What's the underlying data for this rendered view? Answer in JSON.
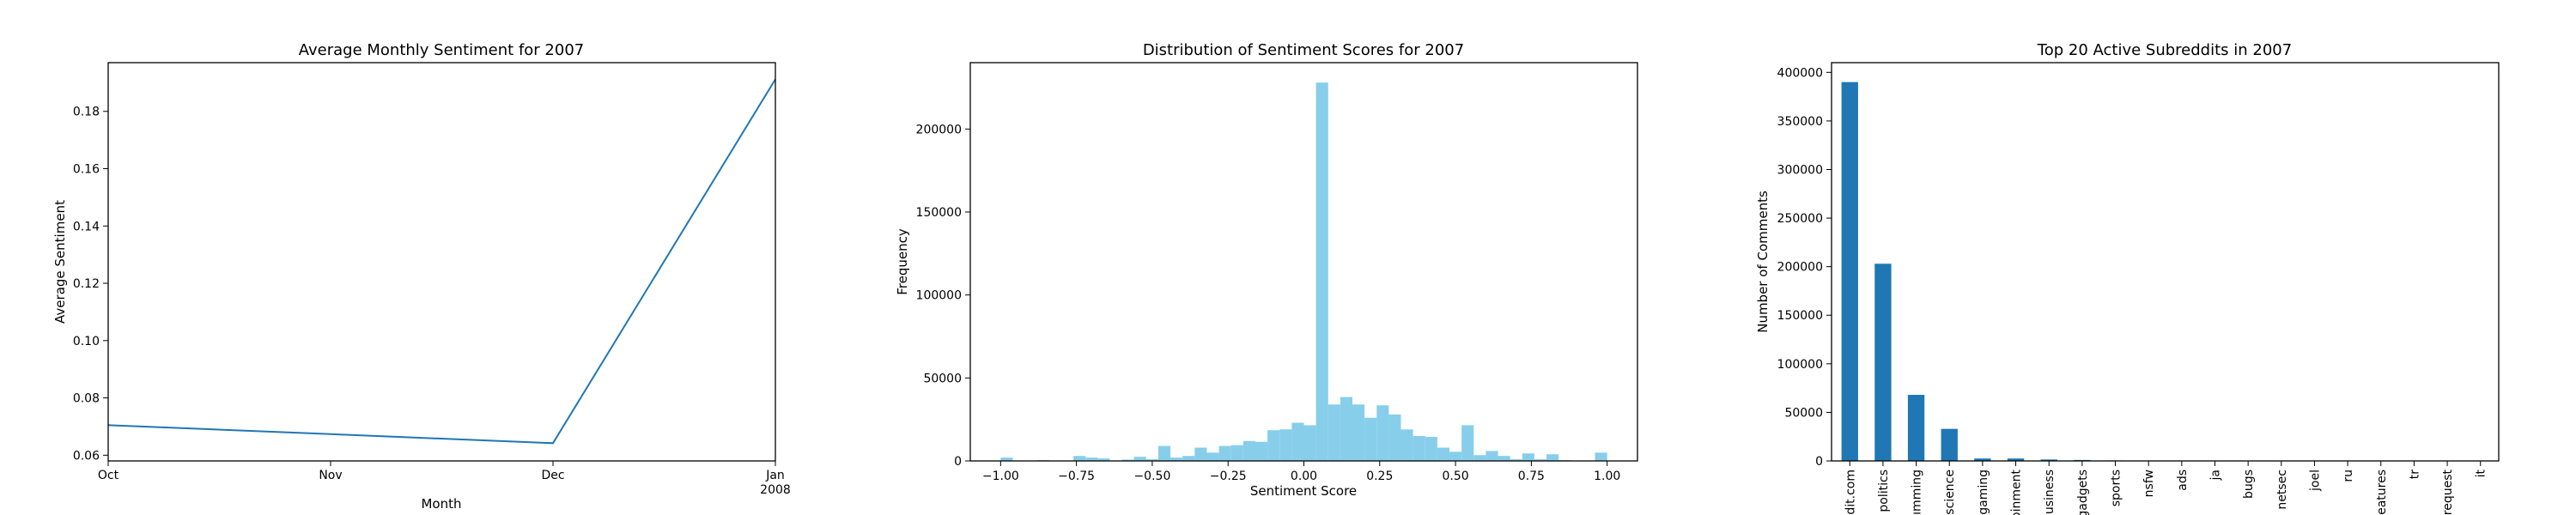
{
  "chart_data": [
    {
      "type": "line",
      "title": "Average Monthly Sentiment for 2007",
      "xlabel": "Month",
      "ylabel": "Average Sentiment",
      "x": [
        "2007-10",
        "2007-11",
        "2007-12",
        "2008-01"
      ],
      "x_tick_labels": [
        "Oct",
        "Nov",
        "Dec",
        "Jan\n2008"
      ],
      "series": [
        {
          "points": [
            [
              "2007-10",
              0.0705
            ],
            [
              "2007-12",
              0.0642
            ],
            [
              "2008-01",
              0.1912
            ]
          ]
        }
      ],
      "y_ticks": [
        0.06,
        0.08,
        0.1,
        0.12,
        0.14,
        0.16,
        0.18
      ],
      "y_tick_labels": [
        "0.06",
        "0.08",
        "0.10",
        "0.12",
        "0.14",
        "0.16",
        "0.18"
      ],
      "ylim": [
        0.058,
        0.197
      ],
      "color": "#1f77b4",
      "grid": false
    },
    {
      "type": "bar",
      "subtype": "histogram",
      "title": "Distribution of Sentiment Scores for 2007",
      "xlabel": "Sentiment Score",
      "ylabel": "Frequency",
      "bin_edges_range": [
        -1.0,
        1.0
      ],
      "bins": 50,
      "values": [
        2000,
        0,
        0,
        500,
        0,
        0,
        3000,
        2000,
        1500,
        0,
        800,
        2500,
        1000,
        9000,
        2000,
        3000,
        8000,
        5000,
        9000,
        9500,
        12000,
        11500,
        18500,
        19000,
        23000,
        21500,
        228000,
        34000,
        38500,
        34000,
        26000,
        33500,
        28000,
        19000,
        15000,
        14500,
        8000,
        5500,
        21500,
        3500,
        6000,
        3000,
        1000,
        4500,
        1000,
        4000,
        500,
        0,
        0,
        5000
      ],
      "x_ticks": [
        -1.0,
        -0.75,
        -0.5,
        -0.25,
        0.0,
        0.25,
        0.5,
        0.75,
        1.0
      ],
      "x_tick_labels": [
        "−1.00",
        "−0.75",
        "−0.50",
        "−0.25",
        "0.00",
        "0.25",
        "0.50",
        "0.75",
        "1.00"
      ],
      "y_ticks": [
        0,
        50000,
        100000,
        150000,
        200000
      ],
      "y_tick_labels": [
        "0",
        "50000",
        "100000",
        "150000",
        "200000"
      ],
      "xlim": [
        -1.1,
        1.1
      ],
      "ylim": [
        0,
        240000
      ],
      "color": "#87ceeb",
      "grid": false
    },
    {
      "type": "bar",
      "title": "Top 20 Active Subreddits in 2007",
      "xlabel": "",
      "ylabel": "Number of Comments",
      "categories": [
        "dit.com",
        "politics",
        "ımming",
        "science",
        "gaming",
        "ɔinment",
        "usiness",
        "gadgets",
        "sports",
        "nsfw",
        "ads",
        "ja",
        "bugs",
        "netsec",
        "joel",
        "ru",
        "ieatures",
        "tr",
        "request",
        "it"
      ],
      "values": [
        390000,
        203000,
        68000,
        33000,
        2500,
        2500,
        1500,
        1000,
        500,
        300,
        200,
        100,
        100,
        100,
        50,
        50,
        50,
        50,
        50,
        50
      ],
      "y_ticks": [
        0,
        50000,
        100000,
        150000,
        200000,
        250000,
        300000,
        350000,
        400000
      ],
      "y_tick_labels": [
        "0",
        "50000",
        "100000",
        "150000",
        "200000",
        "250000",
        "300000",
        "350000",
        "400000"
      ],
      "ylim": [
        0,
        410000
      ],
      "color": "#1f77b4",
      "grid": false
    }
  ]
}
